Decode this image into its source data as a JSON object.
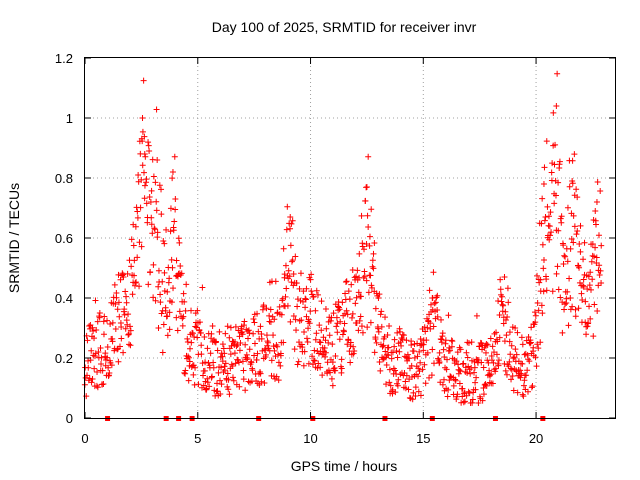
{
  "chart_data": {
    "type": "scatter",
    "title": "Day 100 of 2025, SRMTID for receiver invr",
    "xlabel": "GPS time / hours",
    "ylabel": "SRMTID / TECUs",
    "xlim": [
      0,
      23.5
    ],
    "ylim": [
      0,
      1.2
    ],
    "xticks": [
      0,
      5,
      10,
      15,
      20
    ],
    "xtick_labels": [
      "0",
      "5",
      "10",
      "15",
      "20"
    ],
    "yticks": [
      0,
      0.2,
      0.4,
      0.6,
      0.8,
      1.0,
      1.2
    ],
    "ytick_labels": [
      "0",
      "0.2",
      "0.4",
      "0.6",
      "0.8",
      "1",
      "1.2"
    ],
    "grid": true,
    "marker": "plus",
    "color": "#ff0000",
    "trend": [
      {
        "x": 0.0,
        "y": 0.18
      },
      {
        "x": 0.5,
        "y": 0.21
      },
      {
        "x": 1.0,
        "y": 0.26
      },
      {
        "x": 1.5,
        "y": 0.33
      },
      {
        "x": 2.0,
        "y": 0.38
      },
      {
        "x": 2.5,
        "y": 0.55
      },
      {
        "x": 3.0,
        "y": 0.52
      },
      {
        "x": 3.5,
        "y": 0.34
      },
      {
        "x": 4.0,
        "y": 0.36
      },
      {
        "x": 4.5,
        "y": 0.26
      },
      {
        "x": 5.0,
        "y": 0.22
      },
      {
        "x": 5.5,
        "y": 0.19
      },
      {
        "x": 6.0,
        "y": 0.19
      },
      {
        "x": 6.5,
        "y": 0.2
      },
      {
        "x": 7.0,
        "y": 0.21
      },
      {
        "x": 7.5,
        "y": 0.23
      },
      {
        "x": 8.0,
        "y": 0.25
      },
      {
        "x": 8.5,
        "y": 0.22
      },
      {
        "x": 9.0,
        "y": 0.34
      },
      {
        "x": 9.5,
        "y": 0.27
      },
      {
        "x": 10.0,
        "y": 0.33
      },
      {
        "x": 10.5,
        "y": 0.27
      },
      {
        "x": 11.0,
        "y": 0.23
      },
      {
        "x": 11.5,
        "y": 0.31
      },
      {
        "x": 12.0,
        "y": 0.35
      },
      {
        "x": 12.5,
        "y": 0.42
      },
      {
        "x": 13.0,
        "y": 0.3
      },
      {
        "x": 13.5,
        "y": 0.2
      },
      {
        "x": 14.0,
        "y": 0.18
      },
      {
        "x": 14.5,
        "y": 0.17
      },
      {
        "x": 15.0,
        "y": 0.16
      },
      {
        "x": 15.5,
        "y": 0.22
      },
      {
        "x": 16.0,
        "y": 0.17
      },
      {
        "x": 16.5,
        "y": 0.15
      },
      {
        "x": 17.0,
        "y": 0.15
      },
      {
        "x": 17.5,
        "y": 0.16
      },
      {
        "x": 18.0,
        "y": 0.17
      },
      {
        "x": 18.5,
        "y": 0.25
      },
      {
        "x": 19.0,
        "y": 0.18
      },
      {
        "x": 19.5,
        "y": 0.16
      },
      {
        "x": 20.0,
        "y": 0.22
      },
      {
        "x": 20.5,
        "y": 0.5
      },
      {
        "x": 21.0,
        "y": 0.46
      },
      {
        "x": 21.5,
        "y": 0.44
      },
      {
        "x": 22.0,
        "y": 0.42
      },
      {
        "x": 22.5,
        "y": 0.38
      },
      {
        "x": 22.9,
        "y": 0.34
      }
    ],
    "peaks": [
      {
        "x": 2.55,
        "y": 1.0
      },
      {
        "x": 2.65,
        "y": 0.88
      },
      {
        "x": 3.2,
        "y": 0.86
      },
      {
        "x": 3.9,
        "y": 0.82
      },
      {
        "x": 9.1,
        "y": 0.67
      },
      {
        "x": 12.5,
        "y": 0.77
      },
      {
        "x": 15.4,
        "y": 0.4
      },
      {
        "x": 18.6,
        "y": 0.47
      },
      {
        "x": 20.35,
        "y": 0.78
      },
      {
        "x": 20.9,
        "y": 1.04
      },
      {
        "x": 21.6,
        "y": 0.79
      },
      {
        "x": 22.7,
        "y": 0.72
      }
    ],
    "baseline_markers": [
      1.0,
      3.6,
      4.15,
      4.75,
      7.7,
      10.1,
      13.3,
      15.4,
      18.2,
      20.3
    ]
  }
}
